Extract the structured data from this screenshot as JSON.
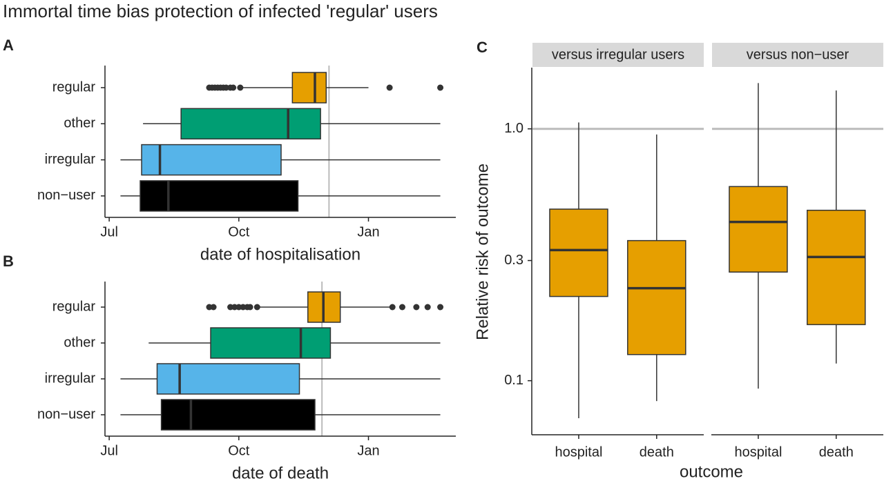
{
  "title": "Immortal time bias protection of infected 'regular' users",
  "chart_data": [
    {
      "type": "boxplot",
      "orientation": "horizontal",
      "panel": "A",
      "xlabel": "date of hospitalisation",
      "xlim": [
        -3,
        246
      ],
      "xticks": [
        {
          "value": 0,
          "label": "Jul"
        },
        {
          "value": 92,
          "label": "Oct"
        },
        {
          "value": 184,
          "label": "Jan"
        }
      ],
      "refline": 156,
      "boxes": [
        {
          "name": "regular",
          "color": "#E69F00",
          "whislo": 94,
          "q1": 130,
          "med": 146,
          "q3": 154,
          "whishi": 184,
          "fliers": [
            71,
            73,
            75,
            77,
            79,
            81,
            83,
            86,
            88,
            93,
            199,
            235
          ]
        },
        {
          "name": "other",
          "color": "#009E73",
          "whislo": 24,
          "q1": 51,
          "med": 127,
          "q3": 150,
          "whishi": 235,
          "fliers": []
        },
        {
          "name": "irregular",
          "color": "#56B4E9",
          "whislo": 8,
          "q1": 23,
          "med": 36,
          "q3": 122,
          "whishi": 235,
          "fliers": []
        },
        {
          "name": "non−user",
          "color": "#000000",
          "whislo": 8,
          "q1": 22,
          "med": 42,
          "q3": 134,
          "whishi": 235,
          "fliers": []
        }
      ]
    },
    {
      "type": "boxplot",
      "orientation": "horizontal",
      "panel": "B",
      "xlabel": "date of death",
      "xlim": [
        -3,
        246
      ],
      "xticks": [
        {
          "value": 0,
          "label": "Jul"
        },
        {
          "value": 92,
          "label": "Oct"
        },
        {
          "value": 184,
          "label": "Jan"
        }
      ],
      "refline": 151,
      "boxes": [
        {
          "name": "regular",
          "color": "#E69F00",
          "whislo": 105,
          "q1": 141,
          "med": 152,
          "q3": 164,
          "whishi": 200,
          "fliers": [
            71,
            74,
            86,
            89,
            92,
            95,
            98,
            100,
            105,
            201,
            208,
            218,
            226,
            235
          ]
        },
        {
          "name": "other",
          "color": "#009E73",
          "whislo": 28,
          "q1": 72,
          "med": 136,
          "q3": 157,
          "whishi": 235,
          "fliers": []
        },
        {
          "name": "irregular",
          "color": "#56B4E9",
          "whislo": 8,
          "q1": 34,
          "med": 50,
          "q3": 135,
          "whishi": 235,
          "fliers": []
        },
        {
          "name": "non−user",
          "color": "#000000",
          "whislo": 8,
          "q1": 37,
          "med": 58,
          "q3": 146,
          "whishi": 235,
          "fliers": []
        }
      ]
    },
    {
      "type": "boxplot",
      "orientation": "vertical",
      "panel": "C",
      "xlabel": "outcome",
      "ylabel": "Relative risk of outcome",
      "log": true,
      "ylim": [
        0.061,
        1.75
      ],
      "yticks": [
        0.1,
        0.3,
        {
          "value": 1,
          "label": "1.0"
        }
      ],
      "refline": 1,
      "color": "#E69F00",
      "facets": [
        {
          "name": "versus irregular users",
          "boxes": [
            {
              "name": "hospital",
              "whislo": 0.071,
              "q1": 0.216,
              "med": 0.33,
              "q3": 0.48,
              "whishi": 1.06
            },
            {
              "name": "death",
              "whislo": 0.083,
              "q1": 0.127,
              "med": 0.233,
              "q3": 0.36,
              "whishi": 0.95
            }
          ]
        },
        {
          "name": "versus non−user",
          "boxes": [
            {
              "name": "hospital",
              "whislo": 0.093,
              "q1": 0.27,
              "med": 0.427,
              "q3": 0.59,
              "whishi": 1.52
            },
            {
              "name": "death",
              "whislo": 0.117,
              "q1": 0.167,
              "med": 0.31,
              "q3": 0.475,
              "whishi": 1.42
            }
          ]
        }
      ]
    }
  ]
}
